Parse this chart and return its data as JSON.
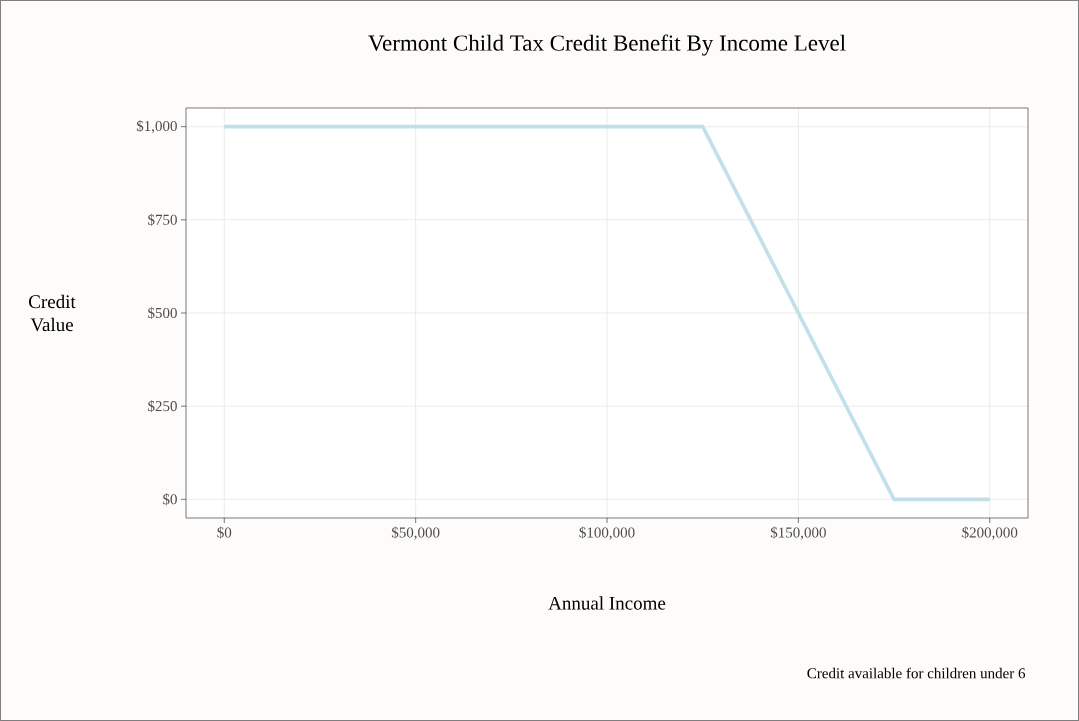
{
  "chart_data": {
    "type": "line",
    "title": "Vermont Child Tax Credit Benefit By Income Level",
    "xlabel": "Annual Income",
    "ylabel": "Credit Value",
    "annotations": [
      "Credit available for children under 6"
    ],
    "series": [
      {
        "color": "#c2e0ea",
        "x": [
          0,
          125000,
          175000,
          200000
        ],
        "values": [
          1000,
          1000,
          0,
          0
        ]
      }
    ],
    "xlim": [
      -10000,
      210000
    ],
    "ylim": [
      -50,
      1050
    ],
    "xticks": [
      {
        "value": 0,
        "label": "$0"
      },
      {
        "value": 50000,
        "label": "$50,000"
      },
      {
        "value": 100000,
        "label": "$100,000"
      },
      {
        "value": 150000,
        "label": "$150,000"
      },
      {
        "value": 200000,
        "label": "$200,000"
      }
    ],
    "yticks": [
      {
        "value": 0,
        "label": "$0"
      },
      {
        "value": 250,
        "label": "$250"
      },
      {
        "value": 500,
        "label": "$500"
      },
      {
        "value": 750,
        "label": "$750"
      },
      {
        "value": 1000,
        "label": "$1,000"
      }
    ],
    "grid": true
  }
}
